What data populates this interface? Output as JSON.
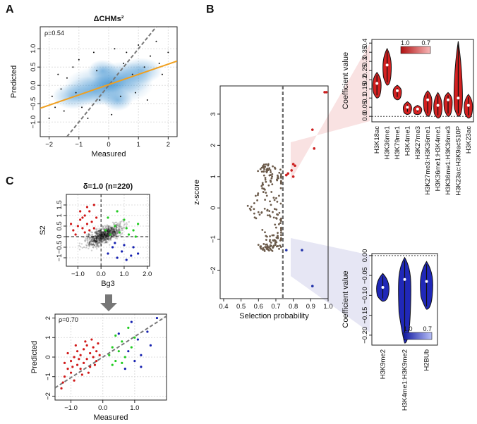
{
  "panels": {
    "a": "A",
    "b": "B",
    "c": "C"
  },
  "chart_data": [
    {
      "id": "A",
      "type": "scatter",
      "title": "ΔCHMs²",
      "xlabel": "Measured",
      "ylabel": "Predicted",
      "annotation": "ρ=0.54",
      "xlim": [
        -2.3,
        2.3
      ],
      "ylim": [
        -1.4,
        1.6
      ],
      "xticks": [
        -2,
        -1,
        0,
        1,
        2
      ],
      "xtick_labels": [
        "−2",
        "−1",
        "0",
        "1",
        "2"
      ],
      "yticks": [
        -1,
        -0.5,
        0,
        0.5,
        1
      ],
      "ytick_labels": [
        "−1.0",
        "−0.5",
        "0.0",
        "0.5",
        "1.0"
      ],
      "regression_line": {
        "slope": 0.28,
        "intercept": 0.02,
        "color": "#f0a020"
      },
      "identity_line": {
        "slope": 1,
        "intercept": 0,
        "color": "#777777"
      },
      "density_color": "#3a8fd0",
      "outliers": [
        [
          -2.0,
          -0.9
        ],
        [
          -1.9,
          -0.3
        ],
        [
          -1.8,
          -0.6
        ],
        [
          -1.6,
          -0.1
        ],
        [
          -1.7,
          0.3
        ],
        [
          -1.4,
          0.2
        ],
        [
          -1.2,
          0.5
        ],
        [
          -1.0,
          0.7
        ],
        [
          -0.9,
          -0.6
        ],
        [
          -0.7,
          -0.9
        ],
        [
          -0.5,
          0.9
        ],
        [
          -0.3,
          -0.4
        ],
        [
          0.1,
          -0.8
        ],
        [
          0.4,
          -0.3
        ],
        [
          0.6,
          0.9
        ],
        [
          0.9,
          -0.2
        ],
        [
          1.0,
          1.1
        ],
        [
          1.2,
          0.5
        ],
        [
          1.4,
          0.8
        ],
        [
          1.6,
          1.2
        ],
        [
          1.8,
          0.3
        ],
        [
          2.0,
          0.9
        ],
        [
          0.2,
          1.0
        ],
        [
          -1.1,
          -0.2
        ],
        [
          1.3,
          -0.4
        ],
        [
          0.8,
          0.3
        ],
        [
          -0.4,
          0.4
        ],
        [
          1.7,
          0.6
        ],
        [
          -1.5,
          -0.7
        ],
        [
          0.5,
          0.6
        ]
      ]
    },
    {
      "id": "B-main",
      "type": "scatter",
      "xlabel": "Selection probability",
      "ylabel": "z-score",
      "xlim": [
        0.38,
        1.0
      ],
      "ylim": [
        -2.9,
        3.9
      ],
      "xticks": [
        0.4,
        0.5,
        0.6,
        0.7,
        0.8,
        0.9,
        1.0
      ],
      "xtick_labels": [
        "0.4",
        "0.5",
        "0.6",
        "0.7",
        "0.8",
        "0.9",
        "1.0"
      ],
      "yticks": [
        -2,
        -1,
        0,
        1,
        2,
        3
      ],
      "ytick_labels": [
        "−2",
        "−1",
        "0",
        "1",
        "2",
        "3"
      ],
      "threshold": 0.74,
      "cloud_color": "#6b5a4a",
      "series": [
        {
          "name": "positive selected",
          "color": "#cc1f1f",
          "points": [
            [
              0.98,
              3.7
            ],
            [
              0.99,
              3.7
            ],
            [
              0.91,
              2.5
            ],
            [
              0.92,
              1.9
            ],
            [
              0.8,
              1.4
            ],
            [
              0.81,
              1.35
            ],
            [
              0.79,
              1.2
            ],
            [
              0.77,
              1.1
            ],
            [
              0.76,
              1.05
            ],
            [
              0.8,
              1.0
            ]
          ]
        },
        {
          "name": "negative selected",
          "color": "#2233aa",
          "points": [
            [
              0.76,
              -1.35
            ],
            [
              0.85,
              -1.35
            ],
            [
              0.91,
              -2.5
            ]
          ]
        }
      ]
    },
    {
      "id": "B-positive",
      "type": "violin",
      "ylabel": "Coefficient value",
      "ylim": [
        -0.03,
        0.42
      ],
      "yticks": [
        0,
        0.05,
        0.1,
        0.15,
        0.2,
        0.25,
        0.3,
        0.35,
        0.4
      ],
      "ytick_labels": [
        "0.0",
        "0.05",
        "0.1",
        "0.15",
        "0.2",
        "0.25",
        "0.3",
        "0.35",
        "0.4"
      ],
      "legend_labels": [
        "1.0",
        "0.7"
      ],
      "color": "#d42020",
      "categories": [
        "H3K18ac",
        "H3K36me1",
        "H3K79me1",
        "H3K4me1",
        "H3K27me3",
        "H3K27me3:H3K36me1",
        "H3K36me1:H3K4me1",
        "H3K36me1:H3K36me3",
        "H3K23ac:H3K9acS10P",
        "H3K23ac"
      ],
      "medians": [
        0.18,
        0.28,
        0.14,
        0.05,
        0.04,
        0.09,
        0.06,
        0.09,
        0.1,
        0.06
      ],
      "mins": [
        0.1,
        0.17,
        0.09,
        0.01,
        0.01,
        0.0,
        -0.01,
        0.0,
        0.0,
        -0.01
      ],
      "maxs": [
        0.24,
        0.37,
        0.17,
        0.08,
        0.06,
        0.14,
        0.13,
        0.13,
        0.41,
        0.12
      ]
    },
    {
      "id": "B-negative",
      "type": "violin",
      "ylabel": "Coefficient value",
      "ylim": [
        -0.225,
        0.005
      ],
      "yticks": [
        0,
        -0.05,
        -0.1,
        -0.15,
        -0.2
      ],
      "ytick_labels": [
        "0.00",
        "−0.05",
        "−0.10",
        "−0.15",
        "−0.20"
      ],
      "legend_labels": [
        "1.0",
        "0.7"
      ],
      "color": "#2028b8",
      "categories": [
        "H3K9me2",
        "H3K4me1:H3K9me2",
        "H2BUb"
      ],
      "medians": [
        -0.08,
        -0.06,
        -0.065
      ],
      "mins": [
        -0.115,
        -0.22,
        -0.135
      ],
      "maxs": [
        -0.045,
        -0.005,
        -0.015
      ]
    },
    {
      "id": "C-top",
      "type": "scatter",
      "title": "δ=1.0 (n=220)",
      "xlabel": "Bg3",
      "ylabel": "S2",
      "xlim": [
        -1.5,
        2.1
      ],
      "ylim": [
        -1.4,
        2.0
      ],
      "xticks": [
        -1,
        0,
        1,
        2
      ],
      "xtick_labels": [
        "−1.0",
        "0.0",
        "1.0",
        "2.0"
      ],
      "yticks": [
        -1,
        -0.5,
        0,
        0.5,
        1,
        1.5
      ],
      "ytick_labels": [
        "−1",
        "−0.5",
        "0",
        "0.5",
        "1",
        "1.5"
      ],
      "series": [
        {
          "name": "red",
          "color": "#d01818",
          "points": [
            [
              -1.2,
              0.3
            ],
            [
              -1.0,
              0.5
            ],
            [
              -0.9,
              0.8
            ],
            [
              -0.8,
              0.4
            ],
            [
              -0.7,
              1.0
            ],
            [
              -0.6,
              0.6
            ],
            [
              -0.5,
              1.2
            ],
            [
              -0.4,
              0.7
            ],
            [
              -0.3,
              1.5
            ],
            [
              -0.2,
              0.9
            ],
            [
              -1.1,
              0.1
            ],
            [
              -0.7,
              0.2
            ],
            [
              -0.5,
              0.3
            ],
            [
              -0.3,
              0.4
            ],
            [
              -0.9,
              1.2
            ],
            [
              -0.6,
              1.4
            ],
            [
              -0.8,
              0.9
            ],
            [
              -1.3,
              0.6
            ]
          ]
        },
        {
          "name": "green",
          "color": "#22cc22",
          "points": [
            [
              0.2,
              0.3
            ],
            [
              0.4,
              0.1
            ],
            [
              0.6,
              0.5
            ],
            [
              0.8,
              0.2
            ],
            [
              1.0,
              0.8
            ],
            [
              1.2,
              0.1
            ],
            [
              1.4,
              0.3
            ],
            [
              1.5,
              0.0
            ],
            [
              0.3,
              0.9
            ],
            [
              0.7,
              1.2
            ],
            [
              1.1,
              0.4
            ],
            [
              1.6,
              0.6
            ]
          ]
        },
        {
          "name": "blue",
          "color": "#1520b0",
          "points": [
            [
              0.3,
              -0.8
            ],
            [
              0.5,
              -0.5
            ],
            [
              0.7,
              -1.0
            ],
            [
              0.9,
              -0.7
            ],
            [
              1.1,
              -1.1
            ],
            [
              1.3,
              -0.9
            ],
            [
              1.6,
              -0.8
            ],
            [
              0.6,
              -0.3
            ],
            [
              1.0,
              -0.4
            ],
            [
              1.4,
              -0.5
            ]
          ]
        }
      ]
    },
    {
      "id": "C-bottom",
      "type": "scatter",
      "xlabel": "Measured",
      "ylabel": "Predicted",
      "annotation": "ρ=0.70",
      "xlim": [
        -1.5,
        2.0
      ],
      "ylim": [
        -2.2,
        2.2
      ],
      "xticks": [
        -1,
        0,
        1
      ],
      "xtick_labels": [
        "−1.0",
        "0.0",
        "1.0"
      ],
      "yticks": [
        -2,
        -1,
        0,
        1,
        2
      ],
      "ytick_labels": [
        "−2",
        "−1",
        "0",
        "1",
        "2"
      ],
      "identity_line": {
        "slope": 1.05,
        "intercept": 0.0,
        "color": "#777777"
      },
      "series": [
        {
          "name": "red",
          "color": "#d01818",
          "points": [
            [
              -1.3,
              -1.6
            ],
            [
              -1.2,
              -1.0
            ],
            [
              -1.1,
              -0.6
            ],
            [
              -1.0,
              -0.8
            ],
            [
              -1.0,
              -0.2
            ],
            [
              -0.9,
              -1.2
            ],
            [
              -0.9,
              0.0
            ],
            [
              -0.8,
              -0.4
            ],
            [
              -0.8,
              0.3
            ],
            [
              -0.7,
              -0.6
            ],
            [
              -0.7,
              0.1
            ],
            [
              -0.6,
              -0.3
            ],
            [
              -0.6,
              0.4
            ],
            [
              -0.5,
              -0.1
            ],
            [
              -0.5,
              0.6
            ],
            [
              -0.4,
              0.2
            ],
            [
              -0.4,
              -0.5
            ],
            [
              -0.3,
              0.0
            ],
            [
              -0.3,
              0.5
            ],
            [
              -0.2,
              -0.2
            ],
            [
              -0.2,
              0.3
            ],
            [
              -0.1,
              0.1
            ],
            [
              -1.2,
              -0.3
            ],
            [
              -1.1,
              0.2
            ],
            [
              -0.95,
              -0.5
            ],
            [
              -0.85,
              0.6
            ],
            [
              -0.65,
              -0.9
            ],
            [
              -0.55,
              0.8
            ],
            [
              -0.35,
              0.9
            ],
            [
              -0.15,
              0.7
            ],
            [
              -1.25,
              -1.3
            ],
            [
              -0.75,
              -0.1
            ],
            [
              -0.45,
              -0.8
            ],
            [
              -0.25,
              -0.4
            ]
          ]
        },
        {
          "name": "green",
          "color": "#22cc22",
          "points": [
            [
              0.2,
              0.1
            ],
            [
              0.3,
              0.5
            ],
            [
              0.4,
              -0.2
            ],
            [
              0.5,
              0.3
            ],
            [
              0.6,
              0.8
            ],
            [
              0.7,
              0.0
            ],
            [
              0.3,
              -0.4
            ],
            [
              0.4,
              1.1
            ],
            [
              0.8,
              1.5
            ],
            [
              1.0,
              1.0
            ],
            [
              0.6,
              -0.3
            ],
            [
              0.9,
              0.5
            ]
          ]
        },
        {
          "name": "blue",
          "color": "#1520b0",
          "points": [
            [
              0.5,
              1.2
            ],
            [
              0.8,
              0.3
            ],
            [
              0.9,
              1.8
            ],
            [
              1.0,
              -0.2
            ],
            [
              1.1,
              0.9
            ],
            [
              1.2,
              0.1
            ],
            [
              1.4,
              1.3
            ],
            [
              1.5,
              0.6
            ],
            [
              1.7,
              2.0
            ],
            [
              1.2,
              -0.5
            ],
            [
              0.7,
              -0.6
            ]
          ]
        }
      ]
    }
  ]
}
